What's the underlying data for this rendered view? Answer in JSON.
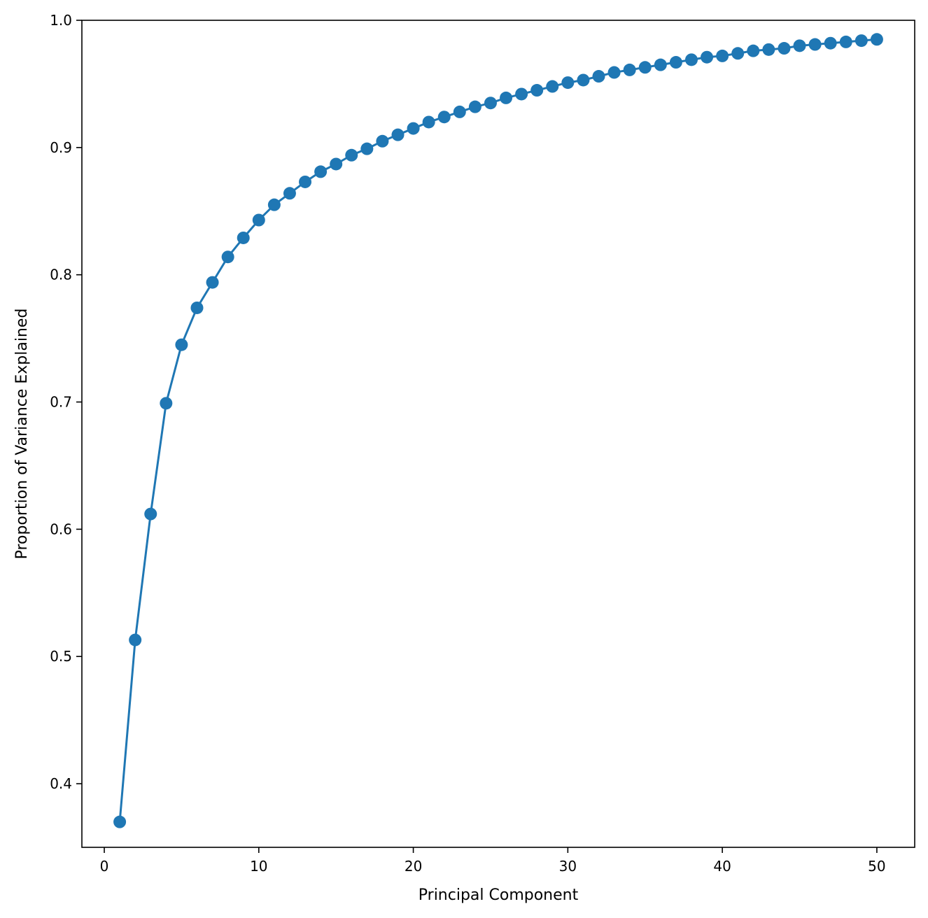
{
  "chart_data": {
    "type": "line",
    "title": "",
    "xlabel": "Principal Component",
    "ylabel": "Proportion of Variance Explained",
    "xlim": [
      -1.45,
      52.45
    ],
    "ylim": [
      0.35,
      1.0
    ],
    "xticks": [
      0,
      10,
      20,
      30,
      40,
      50
    ],
    "yticks": [
      0.4,
      0.5,
      0.6,
      0.7,
      0.8,
      0.9,
      1.0
    ],
    "xtick_labels": [
      "0",
      "10",
      "20",
      "30",
      "40",
      "50"
    ],
    "ytick_labels": [
      "0.4",
      "0.5",
      "0.6",
      "0.7",
      "0.8",
      "0.9",
      "1.0"
    ],
    "grid": false,
    "series": [
      {
        "color": "#1f77b4",
        "marker": "circle",
        "x": [
          1,
          2,
          3,
          4,
          5,
          6,
          7,
          8,
          9,
          10,
          11,
          12,
          13,
          14,
          15,
          16,
          17,
          18,
          19,
          20,
          21,
          22,
          23,
          24,
          25,
          26,
          27,
          28,
          29,
          30,
          31,
          32,
          33,
          34,
          35,
          36,
          37,
          38,
          39,
          40,
          41,
          42,
          43,
          44,
          45,
          46,
          47,
          48,
          49,
          50
        ],
        "y": [
          0.37,
          0.513,
          0.612,
          0.699,
          0.745,
          0.774,
          0.794,
          0.814,
          0.829,
          0.843,
          0.855,
          0.864,
          0.873,
          0.881,
          0.887,
          0.894,
          0.899,
          0.905,
          0.91,
          0.915,
          0.92,
          0.924,
          0.928,
          0.932,
          0.935,
          0.939,
          0.942,
          0.945,
          0.948,
          0.951,
          0.953,
          0.956,
          0.959,
          0.961,
          0.963,
          0.965,
          0.967,
          0.969,
          0.971,
          0.972,
          0.974,
          0.976,
          0.977,
          0.978,
          0.98,
          0.981,
          0.982,
          0.983,
          0.984,
          0.985
        ]
      }
    ]
  }
}
